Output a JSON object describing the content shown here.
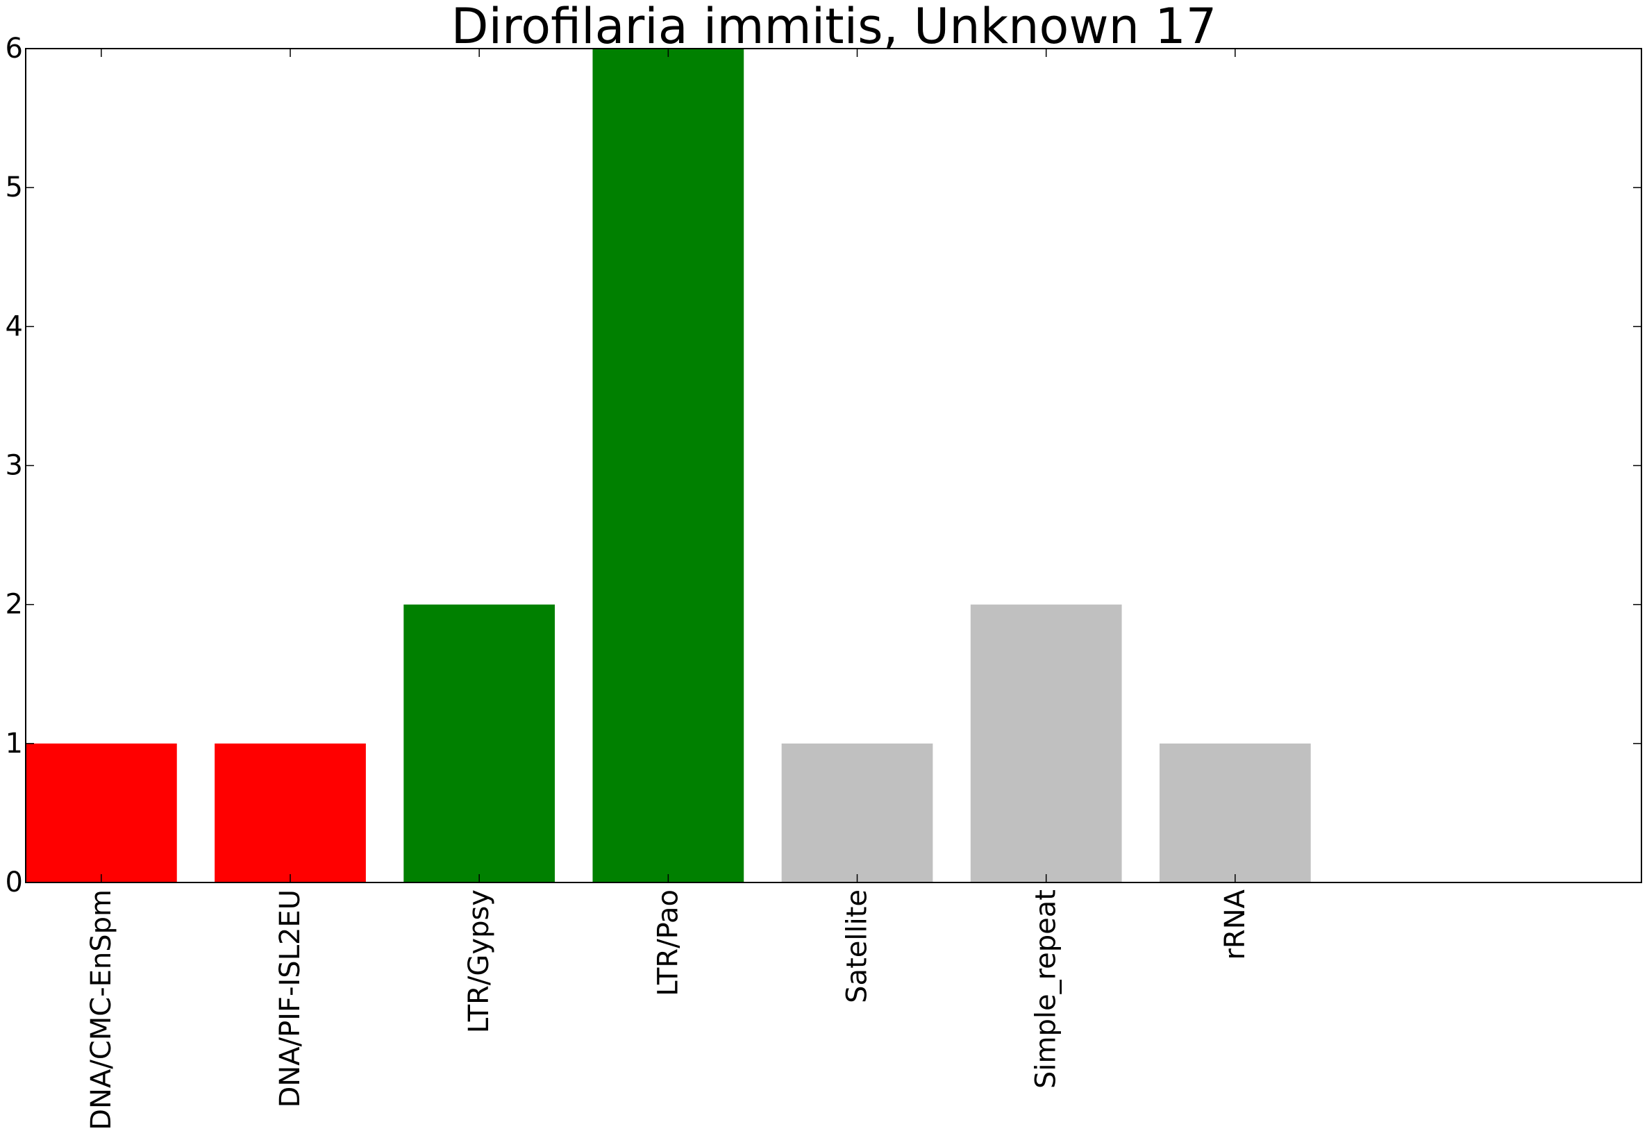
{
  "chart_data": {
    "type": "bar",
    "title": "Dirofilaria immitis, Unknown 17",
    "xlabel": "",
    "ylabel": "",
    "categories": [
      "DNA/CMC-EnSpm",
      "DNA/PIF-ISL2EU",
      "LTR/Gypsy",
      "LTR/Pao",
      "Satellite",
      "Simple_repeat",
      "rRNA"
    ],
    "values": [
      1,
      1,
      2,
      6,
      1,
      2,
      1
    ],
    "colors": [
      "#ff0000",
      "#ff0000",
      "#008000",
      "#008000",
      "#c0c0c0",
      "#c0c0c0",
      "#c0c0c0"
    ],
    "ylim": [
      0,
      6
    ],
    "xlim": [
      0,
      8.55
    ],
    "yticks": [
      "0",
      "1",
      "2",
      "3",
      "4",
      "5",
      "6"
    ],
    "grid": false,
    "legend": "none"
  }
}
